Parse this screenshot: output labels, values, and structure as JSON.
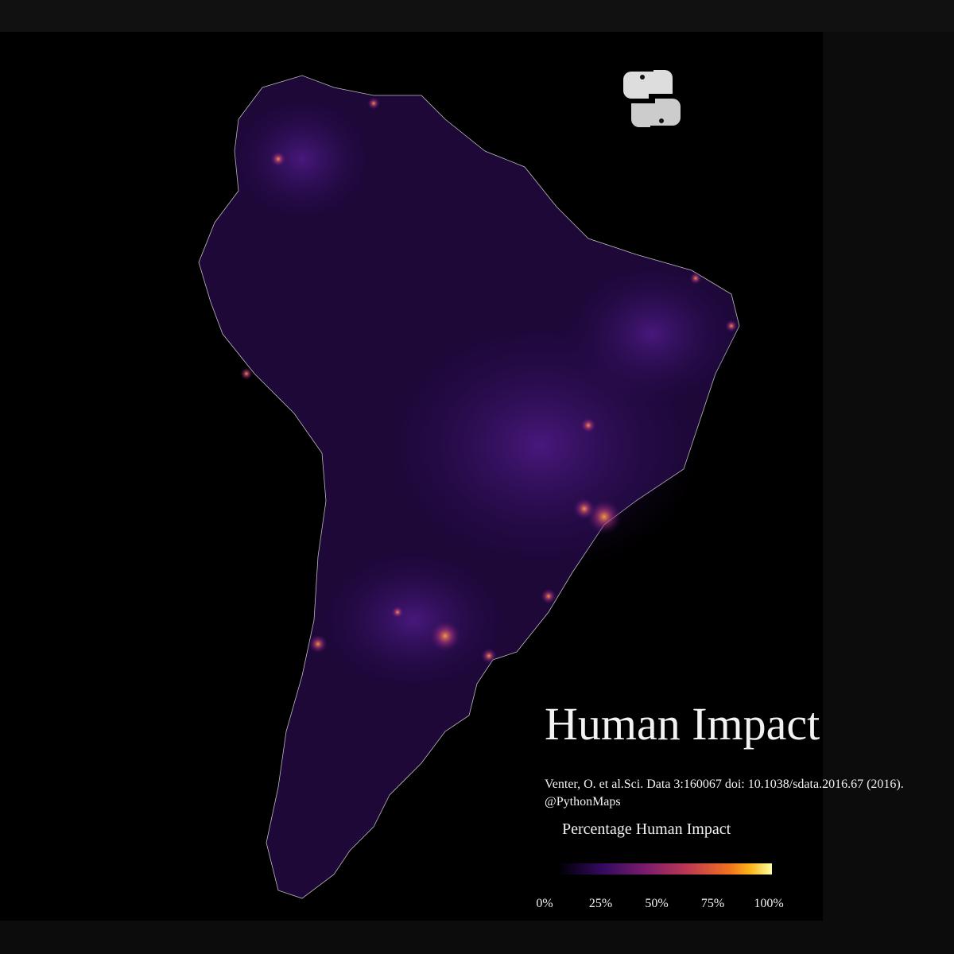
{
  "title": "Human Impact",
  "source": "Venter, O. et al.Sci. Data 3:160067 doi: 10.1038/sdata.2016.67 (2016).",
  "credit": "@PythonMaps",
  "legend": {
    "title": "Percentage Human Impact",
    "ticks": [
      {
        "value": 0,
        "label": "0%"
      },
      {
        "value": 25,
        "label": "25%"
      },
      {
        "value": 50,
        "label": "50%"
      },
      {
        "value": 75,
        "label": "75%"
      },
      {
        "value": 100,
        "label": "100%"
      }
    ]
  }
}
